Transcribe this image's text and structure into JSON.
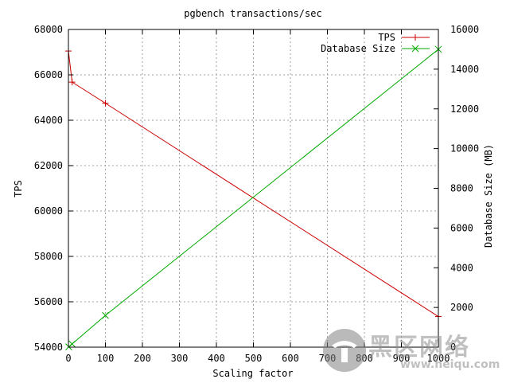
{
  "chart_data": {
    "type": "line",
    "title": "pgbench transactions/sec",
    "xlabel": "Scaling factor",
    "ylabel": "TPS",
    "y2label": "Database Size (MB)",
    "xlim": [
      0,
      1000
    ],
    "ylim": [
      54000,
      68000
    ],
    "y2lim": [
      0,
      16000
    ],
    "x_ticks": [
      0,
      100,
      200,
      300,
      400,
      500,
      600,
      700,
      800,
      900,
      1000
    ],
    "y_ticks": [
      54000,
      56000,
      58000,
      60000,
      62000,
      64000,
      66000,
      68000
    ],
    "y2_ticks": [
      0,
      2000,
      4000,
      6000,
      8000,
      10000,
      12000,
      14000,
      16000
    ],
    "grid": true,
    "legend_position": "top-right",
    "series": [
      {
        "name": "TPS",
        "axis": "left",
        "color": "#cc0000",
        "marker": "plus",
        "x": [
          0,
          10,
          100,
          1000
        ],
        "values": [
          67050,
          65680,
          64750,
          55350
        ]
      },
      {
        "name": "Database Size",
        "axis": "right",
        "color": "#00aa00",
        "marker": "cross",
        "x": [
          1,
          10,
          100,
          1000
        ],
        "values": [
          16,
          160,
          1600,
          15000
        ]
      }
    ]
  },
  "watermark": {
    "text": "黑区网络",
    "url": "www.heiqu.com"
  }
}
